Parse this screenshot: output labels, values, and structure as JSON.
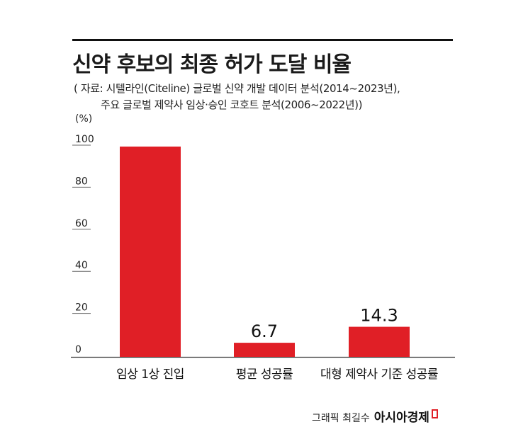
{
  "title": "신약 후보의 최종 허가 도달 비율",
  "source_lines": [
    "( 자료: 시텔라인(Citeline) 글로벌 신약 개발 데이터 분석(2014~2023년),",
    "주요 글로벌 제약사 임상·승인 코호트 분석(2006~2022년))"
  ],
  "credit": {
    "author": "그래픽 최길수",
    "brand": "아시아경제"
  },
  "colors": {
    "bar": "#e01f26",
    "text": "#1a1a1a",
    "axis": "#333333"
  },
  "chart_data": {
    "type": "bar",
    "title": "신약 후보의 최종 허가 도달 비율",
    "unit": "(%)",
    "categories": [
      "임상 1상 진입",
      "평균 성공률",
      "대형 제약사 기준 성공률"
    ],
    "values": [
      100,
      6.7,
      14.3
    ],
    "data_labels": [
      "",
      "6.7",
      "14.3"
    ],
    "y_ticks": [
      "0",
      "20",
      "40",
      "60",
      "80",
      "100"
    ],
    "y_tick_values": [
      0,
      20,
      40,
      60,
      80,
      100
    ],
    "ylim": [
      0,
      100
    ],
    "grid": false,
    "legend": "none"
  }
}
